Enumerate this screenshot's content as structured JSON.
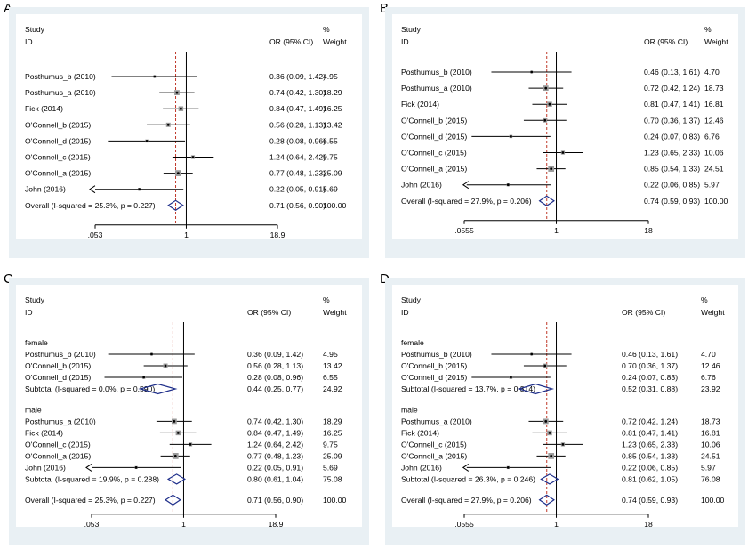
{
  "panels": [
    {
      "letter": "A",
      "header": {
        "study": "Study",
        "id": "ID",
        "or": "OR (95% CI)",
        "pct": "%",
        "weight": "Weight"
      },
      "ticks": [
        ".053",
        "1",
        "18.9"
      ],
      "rows": [
        {
          "kind": "study",
          "label": "Posthumus_b (2010)",
          "or": 0.36,
          "lo": 0.09,
          "hi": 1.42,
          "text": "0.36 (0.09, 1.42)",
          "weight": "4.95"
        },
        {
          "kind": "study",
          "label": "Posthumus_a (2010)",
          "or": 0.74,
          "lo": 0.42,
          "hi": 1.3,
          "text": "0.74 (0.42, 1.30)",
          "weight": "18.29"
        },
        {
          "kind": "study",
          "label": "Fick (2014)",
          "or": 0.84,
          "lo": 0.47,
          "hi": 1.49,
          "text": "0.84 (0.47, 1.49)",
          "weight": "16.25"
        },
        {
          "kind": "study",
          "label": "O'Connell_b (2015)",
          "or": 0.56,
          "lo": 0.28,
          "hi": 1.13,
          "text": "0.56 (0.28, 1.13)",
          "weight": "13.42"
        },
        {
          "kind": "study",
          "label": "O'Connell_d (2015)",
          "or": 0.28,
          "lo": 0.08,
          "hi": 0.96,
          "text": "0.28 (0.08, 0.96)",
          "weight": "6.55"
        },
        {
          "kind": "study",
          "label": "O'Connell_c (2015)",
          "or": 1.24,
          "lo": 0.64,
          "hi": 2.42,
          "text": "1.24 (0.64, 2.42)",
          "weight": "9.75"
        },
        {
          "kind": "study",
          "label": "O'Connell_a (2015)",
          "or": 0.77,
          "lo": 0.48,
          "hi": 1.23,
          "text": "0.77 (0.48, 1.23)",
          "weight": "25.09"
        },
        {
          "kind": "study",
          "label": "John (2016)",
          "or": 0.22,
          "lo": 0.05,
          "hi": 0.91,
          "text": "0.22 (0.05, 0.91)",
          "weight": "5.69"
        },
        {
          "kind": "overall",
          "label": "Overall  (I-squared = 25.3%, p = 0.227)",
          "or": 0.71,
          "lo": 0.56,
          "hi": 0.9,
          "text": "0.71 (0.56, 0.90)",
          "weight": "100.00"
        }
      ]
    },
    {
      "letter": "B",
      "header": {
        "study": "Study",
        "id": "ID",
        "or": "OR (95% CI)",
        "pct": "%",
        "weight": "Weight"
      },
      "ticks": [
        ".0555",
        "1",
        "18"
      ],
      "rows": [
        {
          "kind": "study",
          "label": "Posthumus_b (2010)",
          "or": 0.46,
          "lo": 0.13,
          "hi": 1.61,
          "text": "0.46 (0.13, 1.61)",
          "weight": "4.70"
        },
        {
          "kind": "study",
          "label": "Posthumus_a (2010)",
          "or": 0.72,
          "lo": 0.42,
          "hi": 1.24,
          "text": "0.72 (0.42, 1.24)",
          "weight": "18.73"
        },
        {
          "kind": "study",
          "label": "Fick (2014)",
          "or": 0.81,
          "lo": 0.47,
          "hi": 1.41,
          "text": "0.81 (0.47, 1.41)",
          "weight": "16.81"
        },
        {
          "kind": "study",
          "label": "O'Connell_b (2015)",
          "or": 0.7,
          "lo": 0.36,
          "hi": 1.37,
          "text": "0.70 (0.36, 1.37)",
          "weight": "12.46"
        },
        {
          "kind": "study",
          "label": "O'Connell_d (2015)",
          "or": 0.24,
          "lo": 0.07,
          "hi": 0.83,
          "text": "0.24 (0.07, 0.83)",
          "weight": "6.76"
        },
        {
          "kind": "study",
          "label": "O'Connell_c (2015)",
          "or": 1.23,
          "lo": 0.65,
          "hi": 2.33,
          "text": "1.23 (0.65, 2.33)",
          "weight": "10.06"
        },
        {
          "kind": "study",
          "label": "O'Connell_a (2015)",
          "or": 0.85,
          "lo": 0.54,
          "hi": 1.33,
          "text": "0.85 (0.54, 1.33)",
          "weight": "24.51"
        },
        {
          "kind": "study",
          "label": "John (2016)",
          "or": 0.22,
          "lo": 0.06,
          "hi": 0.85,
          "text": "0.22 (0.06, 0.85)",
          "weight": "5.97"
        },
        {
          "kind": "overall",
          "label": "Overall  (I-squared = 27.9%, p = 0.206)",
          "or": 0.74,
          "lo": 0.59,
          "hi": 0.93,
          "text": "0.74 (0.59, 0.93)",
          "weight": "100.00"
        }
      ]
    },
    {
      "letter": "C",
      "header": {
        "study": "Study",
        "id": "ID",
        "or": "OR (95% CI)",
        "pct": "%",
        "weight": "Weight"
      },
      "ticks": [
        ".053",
        "1",
        "18.9"
      ],
      "rows": [
        {
          "kind": "group",
          "label": "female"
        },
        {
          "kind": "study",
          "label": "Posthumus_b (2010)",
          "or": 0.36,
          "lo": 0.09,
          "hi": 1.42,
          "text": "0.36 (0.09, 1.42)",
          "weight": "4.95"
        },
        {
          "kind": "study",
          "label": "O'Connell_b (2015)",
          "or": 0.56,
          "lo": 0.28,
          "hi": 1.13,
          "text": "0.56 (0.28, 1.13)",
          "weight": "13.42"
        },
        {
          "kind": "study",
          "label": "O'Connell_d (2015)",
          "or": 0.28,
          "lo": 0.08,
          "hi": 0.96,
          "text": "0.28 (0.08, 0.96)",
          "weight": "6.55"
        },
        {
          "kind": "subtotal",
          "label": "Subtotal  (I-squared = 0.0%, p = 0.590)",
          "or": 0.44,
          "lo": 0.25,
          "hi": 0.77,
          "text": "0.44 (0.25, 0.77)",
          "weight": "24.92"
        },
        {
          "kind": "gap"
        },
        {
          "kind": "group",
          "label": "male"
        },
        {
          "kind": "study",
          "label": "Posthumus_a (2010)",
          "or": 0.74,
          "lo": 0.42,
          "hi": 1.3,
          "text": "0.74 (0.42, 1.30)",
          "weight": "18.29"
        },
        {
          "kind": "study",
          "label": "Fick (2014)",
          "or": 0.84,
          "lo": 0.47,
          "hi": 1.49,
          "text": "0.84 (0.47, 1.49)",
          "weight": "16.25"
        },
        {
          "kind": "study",
          "label": "O'Connell_c (2015)",
          "or": 1.24,
          "lo": 0.64,
          "hi": 2.42,
          "text": "1.24 (0.64, 2.42)",
          "weight": "9.75"
        },
        {
          "kind": "study",
          "label": "O'Connell_a (2015)",
          "or": 0.77,
          "lo": 0.48,
          "hi": 1.23,
          "text": "0.77 (0.48, 1.23)",
          "weight": "25.09"
        },
        {
          "kind": "study",
          "label": "John (2016)",
          "or": 0.22,
          "lo": 0.05,
          "hi": 0.91,
          "text": "0.22 (0.05, 0.91)",
          "weight": "5.69"
        },
        {
          "kind": "subtotal",
          "label": "Subtotal  (I-squared = 19.9%, p = 0.288)",
          "or": 0.8,
          "lo": 0.61,
          "hi": 1.04,
          "text": "0.80 (0.61, 1.04)",
          "weight": "75.08"
        },
        {
          "kind": "gap"
        },
        {
          "kind": "overall",
          "label": "Overall  (I-squared = 25.3%, p = 0.227)",
          "or": 0.71,
          "lo": 0.56,
          "hi": 0.9,
          "text": "0.71 (0.56, 0.90)",
          "weight": "100.00"
        }
      ]
    },
    {
      "letter": "D",
      "header": {
        "study": "Study",
        "id": "ID",
        "or": "OR (95% CI)",
        "pct": "%",
        "weight": "Weight"
      },
      "ticks": [
        ".0555",
        "1",
        "18"
      ],
      "rows": [
        {
          "kind": "group",
          "label": "female"
        },
        {
          "kind": "study",
          "label": "Posthumus_b (2010)",
          "or": 0.46,
          "lo": 0.13,
          "hi": 1.61,
          "text": "0.46 (0.13, 1.61)",
          "weight": "4.70"
        },
        {
          "kind": "study",
          "label": "O'Connell_b (2015)",
          "or": 0.7,
          "lo": 0.36,
          "hi": 1.37,
          "text": "0.70 (0.36, 1.37)",
          "weight": "12.46"
        },
        {
          "kind": "study",
          "label": "O'Connell_d (2015)",
          "or": 0.24,
          "lo": 0.07,
          "hi": 0.83,
          "text": "0.24 (0.07, 0.83)",
          "weight": "6.76"
        },
        {
          "kind": "subtotal",
          "label": "Subtotal  (I-squared = 13.7%, p = 0.314)",
          "or": 0.52,
          "lo": 0.31,
          "hi": 0.88,
          "text": "0.52 (0.31, 0.88)",
          "weight": "23.92"
        },
        {
          "kind": "gap"
        },
        {
          "kind": "group",
          "label": "male"
        },
        {
          "kind": "study",
          "label": "Posthumus_a (2010)",
          "or": 0.72,
          "lo": 0.42,
          "hi": 1.24,
          "text": "0.72 (0.42, 1.24)",
          "weight": "18.73"
        },
        {
          "kind": "study",
          "label": "Fick (2014)",
          "or": 0.81,
          "lo": 0.47,
          "hi": 1.41,
          "text": "0.81 (0.47, 1.41)",
          "weight": "16.81"
        },
        {
          "kind": "study",
          "label": "O'Connell_c (2015)",
          "or": 1.23,
          "lo": 0.65,
          "hi": 2.33,
          "text": "1.23 (0.65, 2.33)",
          "weight": "10.06"
        },
        {
          "kind": "study",
          "label": "O'Connell_a (2015)",
          "or": 0.85,
          "lo": 0.54,
          "hi": 1.33,
          "text": "0.85 (0.54, 1.33)",
          "weight": "24.51"
        },
        {
          "kind": "study",
          "label": "John (2016)",
          "or": 0.22,
          "lo": 0.06,
          "hi": 0.85,
          "text": "0.22 (0.06, 0.85)",
          "weight": "5.97"
        },
        {
          "kind": "subtotal",
          "label": "Subtotal  (I-squared = 26.3%, p = 0.246)",
          "or": 0.81,
          "lo": 0.62,
          "hi": 1.05,
          "text": "0.81 (0.62, 1.05)",
          "weight": "76.08"
        },
        {
          "kind": "gap"
        },
        {
          "kind": "overall",
          "label": "Overall  (I-squared = 27.9%, p = 0.206)",
          "or": 0.74,
          "lo": 0.59,
          "hi": 0.93,
          "text": "0.74 (0.59, 0.93)",
          "weight": "100.00"
        }
      ]
    }
  ],
  "chart_data": [
    {
      "type": "forest",
      "panel": "A",
      "axis_scale": "log",
      "xlim": [
        0.053,
        18.9
      ],
      "x_ticks": [
        0.053,
        1,
        18.9
      ],
      "reference_line": 1,
      "pooled_line": 0.71
    },
    {
      "type": "forest",
      "panel": "B",
      "axis_scale": "log",
      "xlim": [
        0.0555,
        18
      ],
      "x_ticks": [
        0.0555,
        1,
        18
      ],
      "reference_line": 1,
      "pooled_line": 0.74
    },
    {
      "type": "forest",
      "panel": "C",
      "axis_scale": "log",
      "xlim": [
        0.053,
        18.9
      ],
      "x_ticks": [
        0.053,
        1,
        18.9
      ],
      "reference_line": 1,
      "pooled_line": 0.71
    },
    {
      "type": "forest",
      "panel": "D",
      "axis_scale": "log",
      "xlim": [
        0.0555,
        18
      ],
      "x_ticks": [
        0.0555,
        1,
        18
      ],
      "reference_line": 1,
      "pooled_line": 0.74
    }
  ],
  "colors": {
    "frame": "#e9f0f4",
    "pooled_line": "#c0392b",
    "diamond": "#1f2f8a",
    "square": "#9a9a9a",
    "axis": "#000000"
  }
}
